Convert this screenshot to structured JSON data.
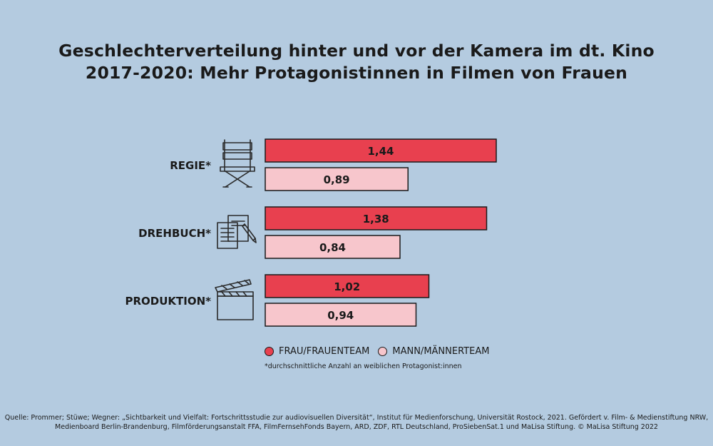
{
  "title_line1": "Geschlechterverteilung hinter und vor der Kamera im dt. Kino",
  "title_line2": "2017-2020: Mehr Protagonistinnen in Filmen von Frauen",
  "legend": {
    "frau": "FRAU/FRAUENTEAM",
    "mann": "MANN/MÄNNERTEAM"
  },
  "footnote": "*durchschnittliche Anzahl an weiblichen Protagonist:innen",
  "source_line1": "Quelle: Prommer; Stüwe; Wegner: „Sichtbarkeit und Vielfalt: Fortschrittsstudie zur audiovisuellen Diversität“, Institut für Medienforschung, Universität Rostock, 2021. Gefördert v. Film- & Medienstiftung NRW,",
  "source_line2": "Medienboard Berlin-Brandenburg, Filmförderungsanstalt FFA, FilmFernsehFonds Bayern, ARD, ZDF, RTL Deutschland, ProSiebenSat.1 und MaLisa Stiftung. © MaLisa Stiftung 2022",
  "colors": {
    "frau": "#e8404f",
    "mann": "#f7c6cc",
    "background": "#b4cbe0"
  },
  "chart_data": {
    "type": "bar",
    "orientation": "horizontal",
    "categories": [
      "REGIE*",
      "DREHBUCH*",
      "PRODUKTION*"
    ],
    "category_icons": [
      "director-chair-icon",
      "screenplay-documents-icon",
      "clapperboard-icon"
    ],
    "series": [
      {
        "name": "FRAU/FRAUENTEAM",
        "values": [
          1.44,
          1.38,
          1.02
        ],
        "labels": [
          "1,44",
          "1,38",
          "1,02"
        ]
      },
      {
        "name": "MANN/MÄNNERTEAM",
        "values": [
          0.89,
          0.84,
          0.94
        ],
        "labels": [
          "0,89",
          "0,84",
          "0,94"
        ]
      }
    ],
    "xlim": [
      0,
      1.44
    ],
    "grid": false,
    "legend_position": "bottom"
  }
}
